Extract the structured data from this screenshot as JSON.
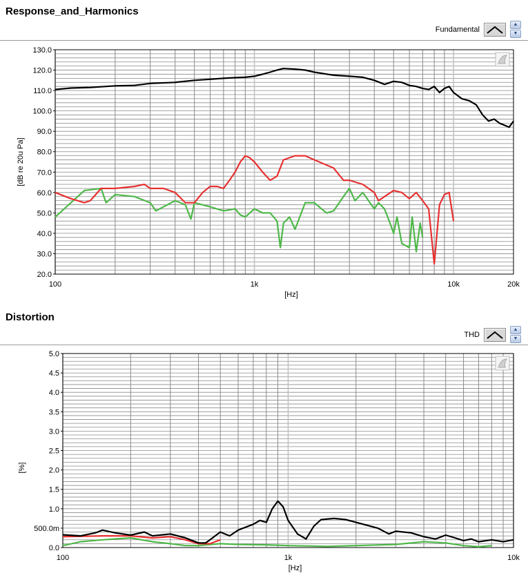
{
  "sections": [
    {
      "title": "Response_and_Harmonics",
      "legend_label": "Fundamental"
    },
    {
      "title": "Distortion",
      "legend_label": "THD"
    }
  ],
  "colors": {
    "black_series": "#000000",
    "red_series": "#e83030",
    "green_series": "#4db848",
    "grid_major": "#8a8a8a",
    "grid_minor": "#8a8a8a"
  },
  "icons": {
    "legend_swatch": "line-plot-icon",
    "spin_up": "chevron-up-icon",
    "spin_down": "chevron-down-icon",
    "graph_palette": "graph-palette-icon"
  },
  "chart_data": [
    {
      "type": "line",
      "title": "Response_and_Harmonics",
      "xlabel": "[Hz]",
      "ylabel": "[dB re 20u Pa]",
      "xscale": "log",
      "xlim": [
        100,
        20000
      ],
      "ylim": [
        20,
        130
      ],
      "x_ticks": [
        100,
        1000,
        10000,
        20000
      ],
      "x_tick_labels": [
        "100",
        "1k",
        "10k",
        "20k"
      ],
      "y_ticks": [
        20,
        30,
        40,
        50,
        60,
        70,
        80,
        90,
        100,
        110,
        120,
        130
      ],
      "y_tick_labels": [
        "20.0",
        "30.0",
        "40.0",
        "50.0",
        "60.0",
        "70.0",
        "80.0",
        "90.0",
        "100.0",
        "110.0",
        "120.0",
        "130.0"
      ],
      "grid": true,
      "legend": [
        "Fundamental"
      ],
      "series": [
        {
          "name": "Fundamental",
          "color": "#000000",
          "points": [
            [
              100,
              110.5
            ],
            [
              120,
              111.2
            ],
            [
              150,
              111.5
            ],
            [
              180,
              112
            ],
            [
              200,
              112.3
            ],
            [
              250,
              112.5
            ],
            [
              300,
              113.5
            ],
            [
              400,
              114
            ],
            [
              500,
              115
            ],
            [
              600,
              115.5
            ],
            [
              700,
              116
            ],
            [
              800,
              116.3
            ],
            [
              900,
              116.5
            ],
            [
              1000,
              117
            ],
            [
              1100,
              118
            ],
            [
              1200,
              119
            ],
            [
              1300,
              120
            ],
            [
              1400,
              120.8
            ],
            [
              1600,
              120.5
            ],
            [
              1800,
              120
            ],
            [
              2000,
              119
            ],
            [
              2500,
              117.5
            ],
            [
              3000,
              117
            ],
            [
              3500,
              116.5
            ],
            [
              4000,
              115
            ],
            [
              4500,
              113
            ],
            [
              5000,
              114.5
            ],
            [
              5500,
              114
            ],
            [
              6000,
              112.5
            ],
            [
              6500,
              112
            ],
            [
              7000,
              111
            ],
            [
              7500,
              110.5
            ],
            [
              8000,
              112
            ],
            [
              8500,
              109
            ],
            [
              9000,
              111
            ],
            [
              9500,
              112
            ],
            [
              10000,
              109
            ],
            [
              11000,
              106
            ],
            [
              12000,
              105
            ],
            [
              13000,
              103
            ],
            [
              14000,
              98
            ],
            [
              15000,
              95
            ],
            [
              16000,
              96
            ],
            [
              17000,
              94
            ],
            [
              18000,
              93
            ],
            [
              19000,
              92
            ],
            [
              20000,
              95
            ]
          ]
        },
        {
          "color": "#e83030",
          "points": [
            [
              100,
              60
            ],
            [
              120,
              57
            ],
            [
              140,
              55
            ],
            [
              150,
              56
            ],
            [
              170,
              62
            ],
            [
              200,
              62
            ],
            [
              250,
              63
            ],
            [
              280,
              64
            ],
            [
              300,
              62
            ],
            [
              350,
              62
            ],
            [
              400,
              60
            ],
            [
              450,
              55
            ],
            [
              500,
              55
            ],
            [
              550,
              60
            ],
            [
              600,
              63
            ],
            [
              650,
              63
            ],
            [
              700,
              62
            ],
            [
              750,
              66
            ],
            [
              800,
              70
            ],
            [
              850,
              75
            ],
            [
              900,
              78
            ],
            [
              950,
              77
            ],
            [
              1000,
              75
            ],
            [
              1100,
              70
            ],
            [
              1200,
              66
            ],
            [
              1300,
              68
            ],
            [
              1400,
              76
            ],
            [
              1600,
              78
            ],
            [
              1800,
              78
            ],
            [
              2000,
              76
            ],
            [
              2500,
              72
            ],
            [
              2800,
              66
            ],
            [
              3000,
              66
            ],
            [
              3500,
              64
            ],
            [
              4000,
              60
            ],
            [
              4200,
              56
            ],
            [
              4500,
              58
            ],
            [
              5000,
              61
            ],
            [
              5500,
              60
            ],
            [
              6000,
              57
            ],
            [
              6500,
              60
            ],
            [
              7000,
              56
            ],
            [
              7500,
              52
            ],
            [
              8000,
              25
            ],
            [
              8500,
              54
            ],
            [
              9000,
              59
            ],
            [
              9500,
              60
            ],
            [
              10000,
              46
            ]
          ]
        },
        {
          "color": "#4db848",
          "points": [
            [
              100,
              48
            ],
            [
              120,
              55
            ],
            [
              140,
              61
            ],
            [
              170,
              62
            ],
            [
              180,
              55
            ],
            [
              200,
              59
            ],
            [
              250,
              58
            ],
            [
              300,
              55
            ],
            [
              320,
              51
            ],
            [
              400,
              56
            ],
            [
              450,
              54
            ],
            [
              480,
              47
            ],
            [
              500,
              55
            ],
            [
              600,
              53
            ],
            [
              700,
              51
            ],
            [
              800,
              52
            ],
            [
              850,
              49
            ],
            [
              900,
              48
            ],
            [
              1000,
              52
            ],
            [
              1100,
              50
            ],
            [
              1200,
              50
            ],
            [
              1300,
              46
            ],
            [
              1350,
              33
            ],
            [
              1400,
              45
            ],
            [
              1500,
              48
            ],
            [
              1600,
              42
            ],
            [
              1800,
              55
            ],
            [
              2000,
              55
            ],
            [
              2300,
              50
            ],
            [
              2500,
              51
            ],
            [
              2800,
              58
            ],
            [
              3000,
              62
            ],
            [
              3200,
              56
            ],
            [
              3500,
              60
            ],
            [
              4000,
              52
            ],
            [
              4200,
              55
            ],
            [
              4500,
              52
            ],
            [
              4800,
              45
            ],
            [
              5000,
              40
            ],
            [
              5200,
              48
            ],
            [
              5500,
              35
            ],
            [
              6000,
              33
            ],
            [
              6200,
              48
            ],
            [
              6500,
              31
            ],
            [
              6800,
              45
            ],
            [
              7000,
              38
            ]
          ]
        }
      ]
    },
    {
      "type": "line",
      "title": "Distortion",
      "xlabel": "[Hz]",
      "ylabel": "[%]",
      "xscale": "log",
      "xlim": [
        100,
        10000
      ],
      "ylim": [
        0,
        5
      ],
      "x_ticks": [
        100,
        1000,
        10000
      ],
      "x_tick_labels": [
        "100",
        "1k",
        "10k"
      ],
      "y_ticks": [
        0,
        0.5,
        1.0,
        1.5,
        2.0,
        2.5,
        3.0,
        3.5,
        4.0,
        4.5,
        5.0
      ],
      "y_tick_labels": [
        "0.0",
        "500.0m",
        "1.0",
        "1.5",
        "2.0",
        "2.5",
        "3.0",
        "3.5",
        "4.0",
        "4.5",
        "5.0"
      ],
      "grid": true,
      "legend": [
        "THD"
      ],
      "series": [
        {
          "name": "THD",
          "color": "#000000",
          "points": [
            [
              100,
              0.33
            ],
            [
              120,
              0.3
            ],
            [
              140,
              0.38
            ],
            [
              150,
              0.45
            ],
            [
              170,
              0.38
            ],
            [
              200,
              0.32
            ],
            [
              230,
              0.4
            ],
            [
              250,
              0.3
            ],
            [
              300,
              0.35
            ],
            [
              350,
              0.25
            ],
            [
              400,
              0.12
            ],
            [
              430,
              0.12
            ],
            [
              450,
              0.2
            ],
            [
              500,
              0.4
            ],
            [
              550,
              0.3
            ],
            [
              600,
              0.45
            ],
            [
              700,
              0.6
            ],
            [
              750,
              0.7
            ],
            [
              800,
              0.65
            ],
            [
              850,
              1.0
            ],
            [
              900,
              1.2
            ],
            [
              950,
              1.05
            ],
            [
              1000,
              0.7
            ],
            [
              1100,
              0.35
            ],
            [
              1200,
              0.22
            ],
            [
              1300,
              0.55
            ],
            [
              1400,
              0.72
            ],
            [
              1600,
              0.75
            ],
            [
              1800,
              0.72
            ],
            [
              2000,
              0.65
            ],
            [
              2500,
              0.5
            ],
            [
              2800,
              0.35
            ],
            [
              3000,
              0.42
            ],
            [
              3500,
              0.38
            ],
            [
              4000,
              0.28
            ],
            [
              4500,
              0.22
            ],
            [
              5000,
              0.32
            ],
            [
              5500,
              0.25
            ],
            [
              6000,
              0.18
            ],
            [
              6500,
              0.22
            ],
            [
              7000,
              0.15
            ],
            [
              8000,
              0.2
            ],
            [
              9000,
              0.15
            ],
            [
              10000,
              0.2
            ]
          ]
        },
        {
          "color": "#e83030",
          "points": [
            [
              100,
              0.28
            ],
            [
              150,
              0.3
            ],
            [
              200,
              0.3
            ],
            [
              250,
              0.25
            ],
            [
              300,
              0.28
            ],
            [
              350,
              0.2
            ],
            [
              400,
              0.1
            ],
            [
              450,
              0.1
            ],
            [
              500,
              0.2
            ]
          ]
        },
        {
          "color": "#4db848",
          "points": [
            [
              100,
              0.05
            ],
            [
              120,
              0.15
            ],
            [
              150,
              0.2
            ],
            [
              200,
              0.25
            ],
            [
              250,
              0.15
            ],
            [
              300,
              0.1
            ],
            [
              350,
              0.05
            ],
            [
              400,
              0.05
            ],
            [
              500,
              0.1
            ],
            [
              600,
              0.08
            ],
            [
              800,
              0.07
            ],
            [
              1000,
              0.05
            ],
            [
              1500,
              0.03
            ],
            [
              2000,
              0.05
            ],
            [
              3000,
              0.08
            ],
            [
              4000,
              0.15
            ],
            [
              5000,
              0.12
            ],
            [
              6000,
              0.05
            ],
            [
              7000,
              0.02
            ],
            [
              8000,
              0.05
            ]
          ]
        }
      ]
    }
  ]
}
